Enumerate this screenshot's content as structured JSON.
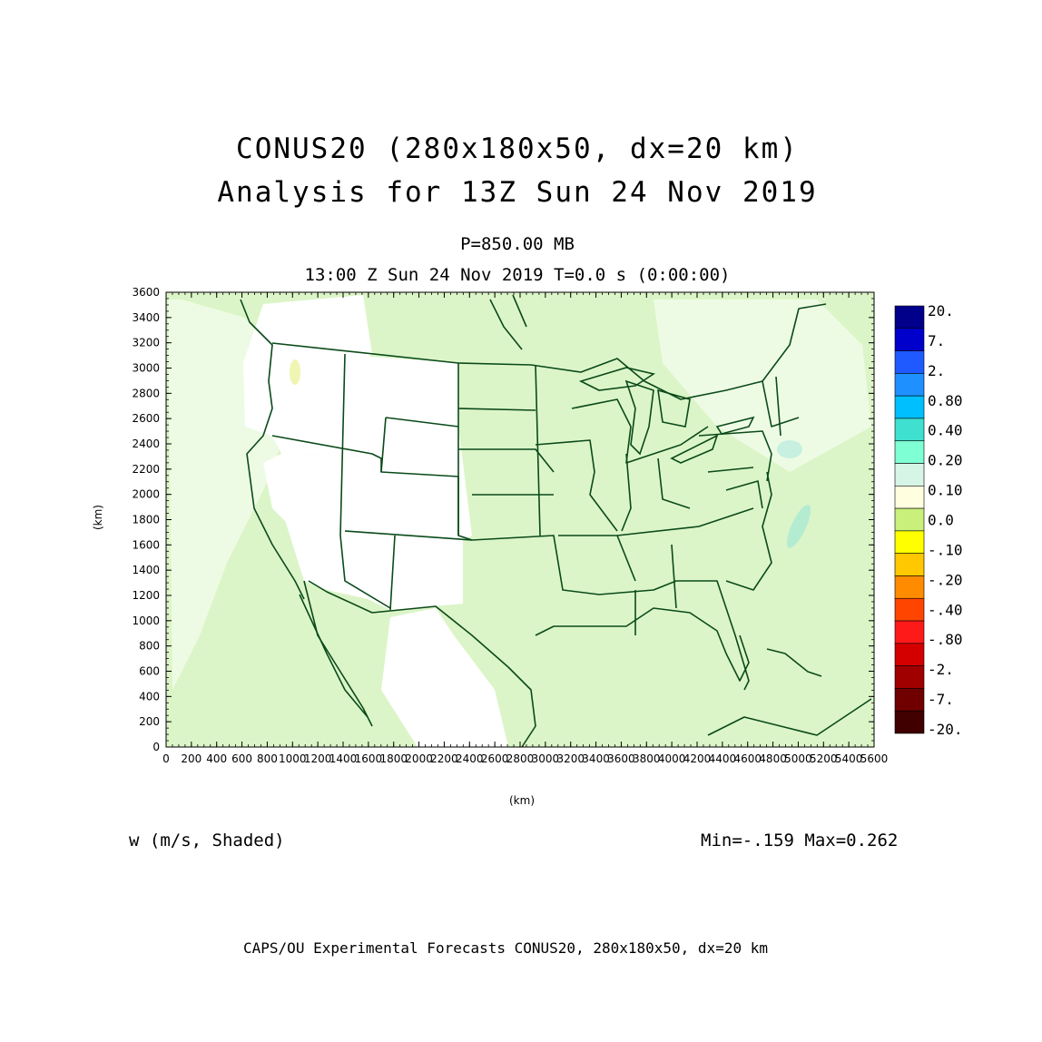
{
  "title_line1": "CONUS20 (280x180x50, dx=20 km)",
  "title_line2": "Analysis for 13Z Sun 24 Nov 2019",
  "level": "P=850.00 MB",
  "time_line": "13:00 Z Sun 24 Nov 2019    T=0.0 s (0:00:00)",
  "field_label": "w (m/s, Shaded)",
  "min_max": "Min=-.159 Max=0.262",
  "footer": "CAPS/OU Experimental Forecasts  CONUS20, 280x180x50, dx=20 km",
  "x_axis": {
    "label": "(km)",
    "ticks": [
      "0",
      "200",
      "400",
      "600",
      "800",
      "1000",
      "1200",
      "1400",
      "1600",
      "1800",
      "2000",
      "2200",
      "2400",
      "2600",
      "2800",
      "3000",
      "3200",
      "3400",
      "3600",
      "3800",
      "4000",
      "4200",
      "4400",
      "4600",
      "4800",
      "5000",
      "5200",
      "5400",
      "5600"
    ],
    "range": [
      0,
      5600
    ]
  },
  "y_axis": {
    "label": "(km)",
    "ticks": [
      "0",
      "200",
      "400",
      "600",
      "800",
      "1000",
      "1200",
      "1400",
      "1600",
      "1800",
      "2000",
      "2200",
      "2400",
      "2600",
      "2800",
      "3000",
      "3200",
      "3400",
      "3600"
    ],
    "range": [
      0,
      3600
    ]
  },
  "colorbar": {
    "labels": [
      "20.",
      "7.",
      "2.",
      "0.80",
      "0.40",
      "0.20",
      "0.10",
      "0.0",
      "-.10",
      "-.20",
      "-.40",
      "-.80",
      "-2.",
      "-7.",
      "-20."
    ],
    "colors": [
      "#00008b",
      "#0000cd",
      "#1e5aff",
      "#1e90ff",
      "#00bfff",
      "#40e0d0",
      "#7fffd4",
      "#d6f5e6",
      "#ffffe0",
      "#c8f07a",
      "#ffff00",
      "#ffc800",
      "#ff8c00",
      "#ff4500",
      "#ff1a1a",
      "#d40000",
      "#a00000",
      "#700000",
      "#400000"
    ]
  },
  "map": {
    "background_color": "#dcf5c8",
    "land_white_color": "#ffffff",
    "boundary_color": "#0a4a1a"
  }
}
